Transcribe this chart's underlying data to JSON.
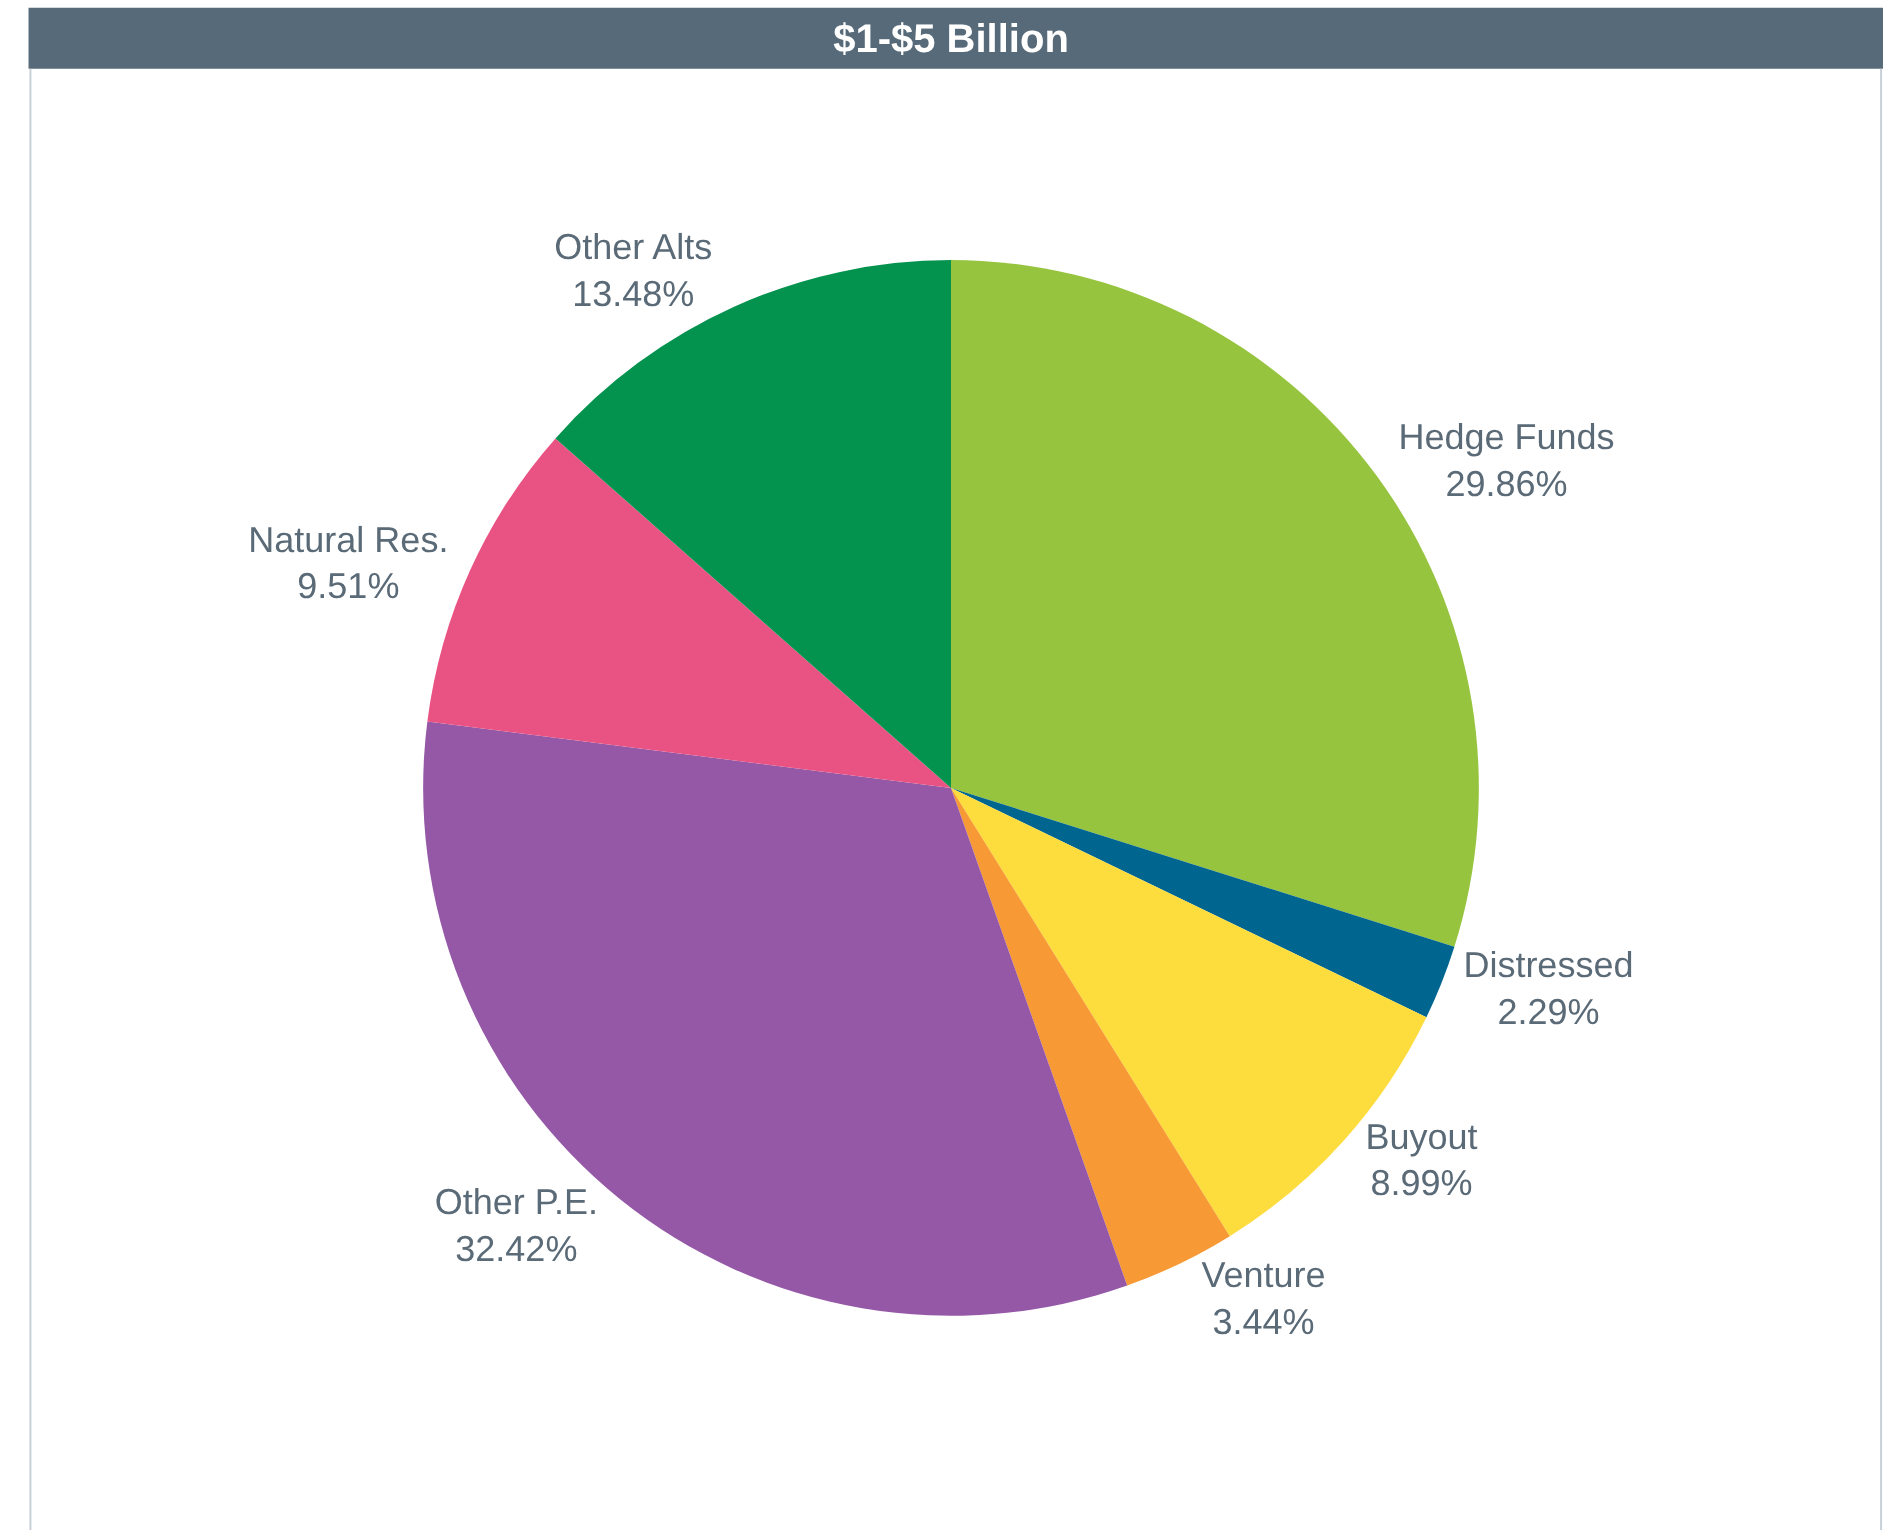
{
  "chart_data": {
    "type": "pie",
    "title": "$1-$5 Billion",
    "categories": [
      "Hedge Funds",
      "Distressed",
      "Buyout",
      "Venture",
      "Other P.E.",
      "Natural Res.",
      "Other Alts"
    ],
    "values": [
      29.86,
      2.29,
      8.99,
      3.44,
      32.42,
      9.51,
      13.48
    ],
    "value_labels": [
      "29.86%",
      "2.29%",
      "8.99%",
      "3.44%",
      "32.42%",
      "9.51%",
      "13.48%"
    ],
    "colors": [
      "#97c43e",
      "#006690",
      "#fddc3d",
      "#f79a35",
      "#9558a7",
      "#e95383",
      "#04924f"
    ],
    "legend": false
  }
}
